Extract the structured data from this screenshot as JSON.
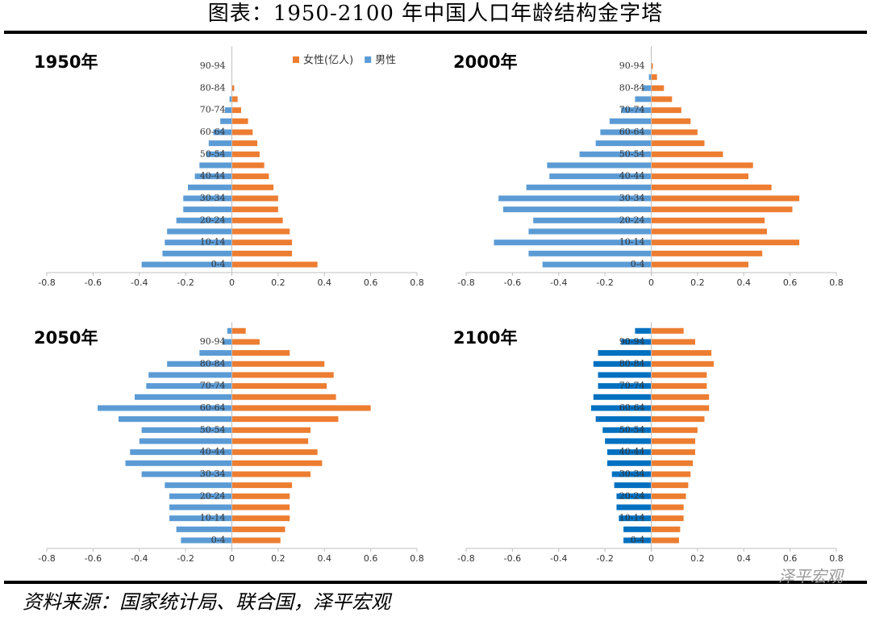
{
  "title": "图表：1950-2100 年中国人口年龄结构金字塔",
  "source": "资料来源：国家统计局、联合国，泽平宏观",
  "watermark": "泽平宏观",
  "chart_data": [
    {
      "type": "pyramid",
      "title": "1950年",
      "legend": "top-right",
      "categories": [
        "0-4",
        null,
        "10-14",
        null,
        "20-24",
        null,
        "30-34",
        null,
        "40-44",
        null,
        "50-54",
        null,
        "60-64",
        null,
        "70-74",
        null,
        "80-84",
        null,
        "90-94",
        null
      ],
      "series": [
        {
          "name": "女性(亿人)",
          "color": "#ed7d31",
          "values": [
            0.37,
            0.26,
            0.26,
            0.25,
            0.22,
            0.2,
            0.2,
            0.18,
            0.16,
            0.14,
            0.12,
            0.11,
            0.09,
            0.07,
            0.04,
            0.025,
            0.01,
            0,
            0,
            0
          ]
        },
        {
          "name": "男性",
          "color": "#5b9bd5",
          "values": [
            -0.39,
            -0.3,
            -0.29,
            -0.28,
            -0.24,
            -0.21,
            -0.21,
            -0.19,
            -0.16,
            -0.14,
            -0.11,
            -0.1,
            -0.08,
            -0.05,
            -0.03,
            -0.01,
            0,
            0,
            0,
            0
          ]
        }
      ],
      "xlim": [
        -0.8,
        0.8
      ],
      "xticks": [
        -0.8,
        -0.6,
        -0.4,
        -0.2,
        0,
        0.2,
        0.4,
        0.6,
        0.8
      ]
    },
    {
      "type": "pyramid",
      "title": "2000年",
      "categories": [
        "0-4",
        null,
        "10-14",
        null,
        "20-24",
        null,
        "30-34",
        null,
        "40-44",
        null,
        "50-54",
        null,
        "60-64",
        null,
        "70-74",
        null,
        "80-84",
        null,
        "90-94",
        null
      ],
      "series": [
        {
          "color": "#ed7d31",
          "values": [
            0.42,
            0.48,
            0.64,
            0.5,
            0.49,
            0.61,
            0.64,
            0.52,
            0.42,
            0.44,
            0.31,
            0.23,
            0.2,
            0.17,
            0.13,
            0.09,
            0.055,
            0.025,
            0.007,
            0
          ]
        },
        {
          "color": "#5b9bd5",
          "values": [
            -0.47,
            -0.53,
            -0.68,
            -0.53,
            -0.51,
            -0.64,
            -0.66,
            -0.54,
            -0.44,
            -0.45,
            -0.31,
            -0.24,
            -0.22,
            -0.18,
            -0.13,
            -0.07,
            -0.035,
            -0.01,
            0,
            0
          ]
        }
      ],
      "xlim": [
        -0.8,
        0.8
      ],
      "xticks": [
        -0.8,
        -0.6,
        -0.4,
        -0.2,
        0,
        0.2,
        0.4,
        0.6,
        0.8
      ]
    },
    {
      "type": "pyramid",
      "title": "2050年",
      "categories": [
        "0-4",
        null,
        "10-14",
        null,
        "20-24",
        null,
        "30-34",
        null,
        "40-44",
        null,
        "50-54",
        null,
        "60-64",
        null,
        "70-74",
        null,
        "80-84",
        null,
        "90-94",
        null
      ],
      "series": [
        {
          "color": "#ed7d31",
          "values": [
            0.21,
            0.23,
            0.25,
            0.25,
            0.25,
            0.26,
            0.34,
            0.39,
            0.37,
            0.33,
            0.34,
            0.46,
            0.6,
            0.45,
            0.41,
            0.44,
            0.4,
            0.25,
            0.12,
            0.06
          ]
        },
        {
          "color": "#5b9bd5",
          "values": [
            -0.22,
            -0.24,
            -0.27,
            -0.27,
            -0.27,
            -0.29,
            -0.39,
            -0.46,
            -0.44,
            -0.4,
            -0.39,
            -0.49,
            -0.58,
            -0.42,
            -0.37,
            -0.36,
            -0.28,
            -0.14,
            -0.04,
            -0.02
          ]
        }
      ],
      "xlim": [
        -0.8,
        0.8
      ],
      "xticks": [
        -0.8,
        -0.6,
        -0.4,
        -0.2,
        0,
        0.2,
        0.4,
        0.6,
        0.8
      ]
    },
    {
      "type": "pyramid",
      "title": "2100年",
      "categories": [
        "0-4",
        null,
        "10-14",
        null,
        "20-24",
        null,
        "30-34",
        null,
        "40-44",
        null,
        "50-54",
        null,
        "60-64",
        null,
        "70-74",
        null,
        "80-84",
        null,
        "90-94",
        null
      ],
      "series": [
        {
          "color": "#ed7d31",
          "values": [
            0.12,
            0.125,
            0.14,
            0.14,
            0.15,
            0.16,
            0.17,
            0.18,
            0.19,
            0.19,
            0.2,
            0.23,
            0.25,
            0.25,
            0.24,
            0.24,
            0.27,
            0.26,
            0.19,
            0.14
          ]
        },
        {
          "color": "#0070c0",
          "values": [
            -0.12,
            -0.12,
            -0.14,
            -0.15,
            -0.15,
            -0.16,
            -0.17,
            -0.19,
            -0.19,
            -0.2,
            -0.21,
            -0.24,
            -0.26,
            -0.25,
            -0.23,
            -0.23,
            -0.25,
            -0.23,
            -0.13,
            -0.07
          ]
        }
      ],
      "xlim": [
        -0.8,
        0.8
      ],
      "xticks": [
        -0.8,
        -0.6,
        -0.4,
        -0.2,
        0,
        0.2,
        0.4,
        0.6,
        0.8
      ]
    }
  ]
}
